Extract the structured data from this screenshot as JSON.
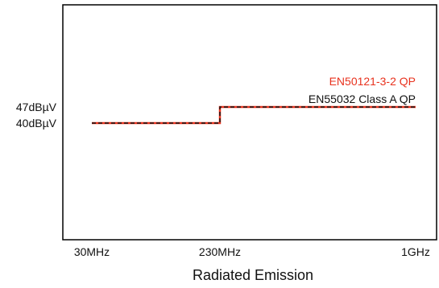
{
  "chart_data": {
    "type": "line",
    "xlabel": "Radiated Emission",
    "ylabel": "",
    "title": "",
    "grid": false,
    "x_ticks": [
      "30MHz",
      "230MHz",
      "1GHz"
    ],
    "y_ticks": [
      {
        "label": "47dBµV",
        "value": 47
      },
      {
        "label": "40dBµV",
        "value": 40
      }
    ],
    "ylim": [
      0,
      100
    ],
    "series": [
      {
        "name": "EN50121-3-2 QP",
        "color": "#e8321e",
        "style": "solid",
        "points": [
          {
            "x": "30MHz",
            "y": 40
          },
          {
            "x": "230MHz",
            "y": 40
          },
          {
            "x": "230MHz",
            "y": 47
          },
          {
            "x": "1GHz",
            "y": 47
          }
        ]
      },
      {
        "name": "EN55032 Class A QP",
        "color": "#111111",
        "style": "dashed",
        "points": [
          {
            "x": "30MHz",
            "y": 40
          },
          {
            "x": "230MHz",
            "y": 40
          },
          {
            "x": "230MHz",
            "y": 47
          },
          {
            "x": "1GHz",
            "y": 47
          }
        ]
      }
    ],
    "legend": "inline-right"
  }
}
